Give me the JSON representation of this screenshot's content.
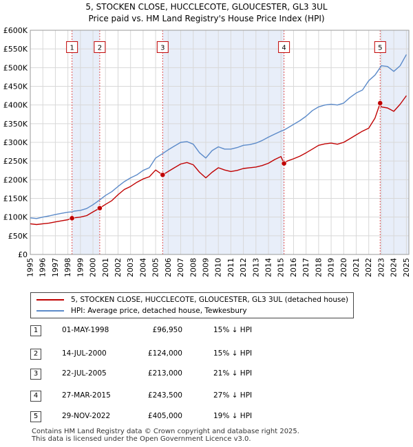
{
  "chart_data": {
    "type": "line",
    "title": "5, STOCKEN CLOSE, HUCCLECOTE, GLOUCESTER, GL3 3UL",
    "subtitle": "Price paid vs. HM Land Registry's House Price Index (HPI)",
    "xlabel": "",
    "ylabel": "",
    "xlim": [
      1995,
      2025.2
    ],
    "ylim": [
      0,
      600000
    ],
    "x_ticks": [
      "1995",
      "1996",
      "1997",
      "1998",
      "1999",
      "2000",
      "2001",
      "2002",
      "2003",
      "2004",
      "2005",
      "2006",
      "2007",
      "2008",
      "2009",
      "2010",
      "2011",
      "2012",
      "2013",
      "2014",
      "2015",
      "2016",
      "2017",
      "2018",
      "2019",
      "2020",
      "2021",
      "2022",
      "2023",
      "2024",
      "2025"
    ],
    "y_ticks": [
      {
        "value": 0,
        "label": "£0"
      },
      {
        "value": 50000,
        "label": "£50K"
      },
      {
        "value": 100000,
        "label": "£100K"
      },
      {
        "value": 150000,
        "label": "£150K"
      },
      {
        "value": 200000,
        "label": "£200K"
      },
      {
        "value": 250000,
        "label": "£250K"
      },
      {
        "value": 300000,
        "label": "£300K"
      },
      {
        "value": 350000,
        "label": "£350K"
      },
      {
        "value": 400000,
        "label": "£400K"
      },
      {
        "value": 450000,
        "label": "£450K"
      },
      {
        "value": 500000,
        "label": "£500K"
      },
      {
        "value": 550000,
        "label": "£550K"
      },
      {
        "value": 600000,
        "label": "£600K"
      }
    ],
    "grid": true,
    "shaded_ranges": [
      [
        1998.33,
        2000.54
      ],
      [
        2005.56,
        2015.24
      ],
      [
        2022.91,
        2025.2
      ]
    ],
    "series": [
      {
        "name": "HPI: Average price, detached house, Tewkesbury",
        "color": "#5b8ac9",
        "x": [
          1995.0,
          1995.5,
          1996.0,
          1996.5,
          1997.0,
          1997.5,
          1998.0,
          1998.33,
          1998.5,
          1999.0,
          1999.5,
          2000.0,
          2000.54,
          2001.0,
          2001.5,
          2002.0,
          2002.5,
          2003.0,
          2003.5,
          2004.0,
          2004.5,
          2005.0,
          2005.56,
          2006.0,
          2006.5,
          2007.0,
          2007.5,
          2008.0,
          2008.5,
          2009.0,
          2009.5,
          2010.0,
          2010.5,
          2011.0,
          2011.5,
          2012.0,
          2012.5,
          2013.0,
          2013.5,
          2014.0,
          2014.5,
          2015.0,
          2015.24,
          2015.5,
          2016.0,
          2016.5,
          2017.0,
          2017.5,
          2018.0,
          2018.5,
          2019.0,
          2019.5,
          2020.0,
          2020.5,
          2021.0,
          2021.5,
          2022.0,
          2022.5,
          2022.91,
          2023.0,
          2023.5,
          2024.0,
          2024.5,
          2025.0
        ],
        "y": [
          98000,
          96000,
          100000,
          103000,
          107000,
          110000,
          113000,
          114000,
          116000,
          118000,
          123000,
          133000,
          146000,
          158000,
          168000,
          182000,
          195000,
          205000,
          213000,
          225000,
          232000,
          258000,
          270000,
          280000,
          290000,
          300000,
          302000,
          295000,
          272000,
          258000,
          278000,
          288000,
          282000,
          282000,
          286000,
          292000,
          294000,
          298000,
          305000,
          314000,
          322000,
          330000,
          333000,
          338000,
          348000,
          358000,
          370000,
          385000,
          395000,
          400000,
          402000,
          400000,
          405000,
          420000,
          432000,
          440000,
          465000,
          480000,
          500000,
          505000,
          503000,
          490000,
          505000,
          535000
        ]
      },
      {
        "name": "5, STOCKEN CLOSE, HUCCLECOTE, GLOUCESTER, GL3 3UL (detached house)",
        "color": "#c00000",
        "x": [
          1995.0,
          1995.5,
          1996.0,
          1996.5,
          1997.0,
          1997.5,
          1998.0,
          1998.33,
          1998.5,
          1999.0,
          1999.5,
          2000.0,
          2000.54,
          2001.0,
          2001.5,
          2002.0,
          2002.5,
          2003.0,
          2003.5,
          2004.0,
          2004.5,
          2005.0,
          2005.56,
          2006.0,
          2006.5,
          2007.0,
          2007.5,
          2008.0,
          2008.5,
          2009.0,
          2009.5,
          2010.0,
          2010.5,
          2011.0,
          2011.5,
          2012.0,
          2012.5,
          2013.0,
          2013.5,
          2014.0,
          2014.5,
          2015.0,
          2015.24,
          2015.5,
          2016.0,
          2016.5,
          2017.0,
          2017.5,
          2018.0,
          2018.5,
          2019.0,
          2019.5,
          2020.0,
          2020.5,
          2021.0,
          2021.5,
          2022.0,
          2022.5,
          2022.91,
          2022.95,
          2023.0,
          2023.5,
          2024.0,
          2024.5,
          2025.0
        ],
        "y": [
          82000,
          80000,
          82000,
          84000,
          87000,
          90000,
          93000,
          96950,
          98000,
          100000,
          104000,
          114000,
          124000,
          134000,
          144000,
          160000,
          174000,
          182000,
          193000,
          202000,
          208000,
          226000,
          213000,
          222000,
          232000,
          242000,
          246000,
          240000,
          220000,
          205000,
          220000,
          232000,
          226000,
          222000,
          225000,
          230000,
          232000,
          234000,
          238000,
          244000,
          254000,
          262000,
          243500,
          250000,
          256000,
          263000,
          272000,
          282000,
          292000,
          296000,
          298000,
          295000,
          300000,
          310000,
          320000,
          330000,
          338000,
          365000,
          405000,
          400000,
          395000,
          392000,
          383000,
          402000,
          425000
        ]
      }
    ],
    "sales": [
      {
        "label": "1",
        "x": 1998.33,
        "price": 96950
      },
      {
        "label": "2",
        "x": 2000.54,
        "price": 124000
      },
      {
        "label": "3",
        "x": 2005.56,
        "price": 213000
      },
      {
        "label": "4",
        "x": 2015.24,
        "price": 243500
      },
      {
        "label": "5",
        "x": 2022.91,
        "price": 405000
      }
    ],
    "box_label_price": 555000
  },
  "legend": {
    "property": "5, STOCKEN CLOSE, HUCCLECOTE, GLOUCESTER, GL3 3UL (detached house)",
    "hpi": "HPI: Average price, detached house, Tewkesbury"
  },
  "transactions": [
    {
      "num": "1",
      "date": "01-MAY-1998",
      "price": "£96,950",
      "hpi": "15% ↓ HPI"
    },
    {
      "num": "2",
      "date": "14-JUL-2000",
      "price": "£124,000",
      "hpi": "15% ↓ HPI"
    },
    {
      "num": "3",
      "date": "22-JUL-2005",
      "price": "£213,000",
      "hpi": "21% ↓ HPI"
    },
    {
      "num": "4",
      "date": "27-MAR-2015",
      "price": "£243,500",
      "hpi": "27% ↓ HPI"
    },
    {
      "num": "5",
      "date": "29-NOV-2022",
      "price": "£405,000",
      "hpi": "19% ↓ HPI"
    }
  ],
  "footer": {
    "line1": "Contains HM Land Registry data © Crown copyright and database right 2025.",
    "line2": "This data is licensed under the Open Government Licence v3.0."
  }
}
